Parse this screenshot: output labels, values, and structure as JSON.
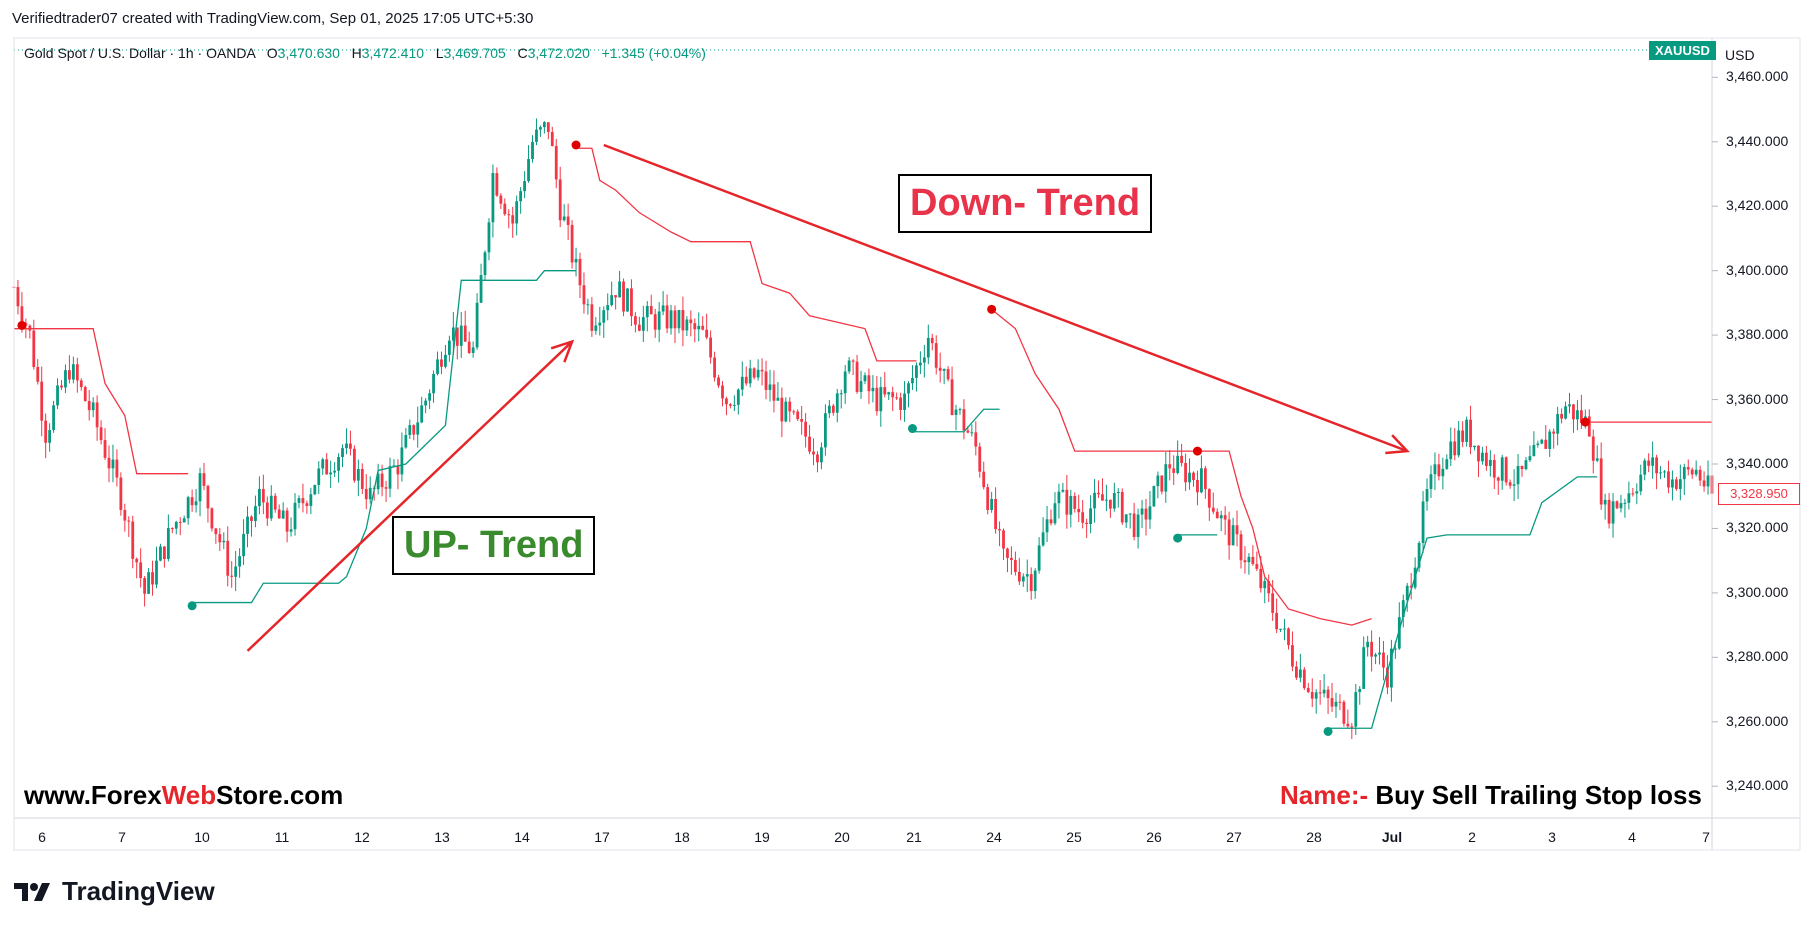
{
  "header": {
    "text": "Verifiedtrader07 created with TradingView.com, Sep 01, 2025 17:05 UTC+5:30"
  },
  "legend": {
    "symbol": "Gold Spot / U.S. Dollar · 1h · OANDA",
    "o_label": "O",
    "o_value": "3,470.630",
    "h_label": "H",
    "h_value": "3,472.410",
    "l_label": "L",
    "l_value": "3,469.705",
    "c_label": "C",
    "c_value": "3,472.020",
    "change": "+1.345 (+0.04%)"
  },
  "symbol_badge": "XAUUSD",
  "currency": "USD",
  "last_price": "3,328.950",
  "annotations": {
    "up_trend": "UP- Trend",
    "down_trend": "Down- Trend"
  },
  "watermark": {
    "site_a": "www.Forex",
    "site_b": "Web",
    "site_c": "Store.com",
    "name_label": "Name:-",
    "name_value": " Buy Sell Trailing Stop loss"
  },
  "logo": {
    "text": "TradingView",
    "icon": "tradingview-logo-icon"
  },
  "colors": {
    "up": "#089981",
    "down": "#f23645",
    "arrow": "#e5252a",
    "up_text": "#3a8a2e"
  },
  "chart_data": {
    "type": "candlestick",
    "title": "",
    "ylim": [
      3232,
      3466
    ],
    "y_ticks": [
      "3,460.000",
      "3,440.000",
      "3,420.000",
      "3,400.000",
      "3,380.000",
      "3,360.000",
      "3,340.000",
      "3,320.000",
      "3,300.000",
      "3,280.000",
      "3,260.000",
      "3,240.000"
    ],
    "y_tick_values": [
      3460,
      3440,
      3420,
      3400,
      3380,
      3360,
      3340,
      3320,
      3300,
      3280,
      3260,
      3240
    ],
    "x_ticks": [
      "6",
      "7",
      "10",
      "11",
      "12",
      "13",
      "14",
      "17",
      "18",
      "19",
      "20",
      "21",
      "24",
      "25",
      "26",
      "27",
      "28",
      "Jul",
      "2",
      "3",
      "4",
      "7"
    ],
    "series": [
      {
        "name": "price_path",
        "points": [
          [
            0,
            3395
          ],
          [
            4,
            3380
          ],
          [
            8,
            3350
          ],
          [
            14,
            3370
          ],
          [
            20,
            3355
          ],
          [
            27,
            3330
          ],
          [
            33,
            3300
          ],
          [
            40,
            3320
          ],
          [
            47,
            3335
          ],
          [
            55,
            3305
          ],
          [
            62,
            3330
          ],
          [
            69,
            3320
          ],
          [
            76,
            3335
          ],
          [
            83,
            3345
          ],
          [
            90,
            3330
          ],
          [
            97,
            3340
          ],
          [
            104,
            3360
          ],
          [
            110,
            3382
          ],
          [
            116,
            3375
          ],
          [
            121,
            3430
          ],
          [
            126,
            3415
          ],
          [
            131,
            3440
          ],
          [
            135,
            3445
          ],
          [
            138,
            3420
          ],
          [
            142,
            3400
          ],
          [
            146,
            3385
          ],
          [
            152,
            3395
          ],
          [
            158,
            3385
          ],
          [
            166,
            3385
          ],
          [
            174,
            3380
          ],
          [
            180,
            3360
          ],
          [
            188,
            3368
          ],
          [
            195,
            3355
          ],
          [
            203,
            3345
          ],
          [
            210,
            3370
          ],
          [
            218,
            3360
          ],
          [
            225,
            3360
          ],
          [
            231,
            3380
          ],
          [
            236,
            3362
          ],
          [
            243,
            3345
          ],
          [
            250,
            3310
          ],
          [
            257,
            3305
          ],
          [
            263,
            3330
          ],
          [
            270,
            3325
          ],
          [
            277,
            3330
          ],
          [
            284,
            3320
          ],
          [
            292,
            3340
          ],
          [
            300,
            3335
          ],
          [
            306,
            3320
          ],
          [
            312,
            3310
          ],
          [
            318,
            3295
          ],
          [
            323,
            3280
          ],
          [
            328,
            3270
          ],
          [
            333,
            3265
          ],
          [
            338,
            3262
          ],
          [
            342,
            3285
          ],
          [
            347,
            3275
          ],
          [
            352,
            3300
          ],
          [
            357,
            3330
          ],
          [
            362,
            3345
          ],
          [
            367,
            3350
          ],
          [
            373,
            3340
          ],
          [
            380,
            3335
          ],
          [
            386,
            3345
          ],
          [
            392,
            3358
          ],
          [
            398,
            3352
          ],
          [
            402,
            3325
          ],
          [
            407,
            3330
          ],
          [
            413,
            3340
          ],
          [
            419,
            3335
          ],
          [
            425,
            3338
          ],
          [
            429,
            3330
          ]
        ]
      },
      {
        "name": "trail_sell_1",
        "points": [
          [
            0,
            3382
          ],
          [
            20,
            3382
          ],
          [
            23,
            3365
          ],
          [
            28,
            3355
          ],
          [
            31,
            3337
          ],
          [
            44,
            3337
          ]
        ]
      },
      {
        "name": "trail_buy_1",
        "points": [
          [
            45,
            3297
          ],
          [
            60,
            3297
          ],
          [
            63,
            3303
          ],
          [
            82,
            3303
          ],
          [
            84,
            3305
          ],
          [
            89,
            3320
          ],
          [
            92,
            3338
          ],
          [
            99,
            3340
          ],
          [
            109,
            3352
          ],
          [
            113,
            3397
          ],
          [
            132,
            3397
          ],
          [
            134,
            3400
          ],
          [
            142,
            3400
          ]
        ]
      },
      {
        "name": "trail_sell_2",
        "points": [
          [
            142,
            3438
          ],
          [
            146,
            3438
          ],
          [
            148,
            3428
          ],
          [
            152,
            3425
          ],
          [
            158,
            3418
          ],
          [
            166,
            3412
          ],
          [
            171,
            3409
          ],
          [
            186,
            3409
          ],
          [
            189,
            3396
          ],
          [
            196,
            3393
          ],
          [
            201,
            3386
          ],
          [
            215,
            3382
          ],
          [
            218,
            3372
          ],
          [
            228,
            3372
          ]
        ]
      },
      {
        "name": "trail_buy_2",
        "points": [
          [
            227,
            3350
          ],
          [
            240,
            3350
          ],
          [
            245,
            3357
          ],
          [
            249,
            3357
          ]
        ]
      },
      {
        "name": "trail_sell_3",
        "points": [
          [
            247,
            3388
          ],
          [
            253,
            3382
          ],
          [
            258,
            3368
          ],
          [
            264,
            3357
          ],
          [
            268,
            3344
          ],
          [
            299,
            3344
          ]
        ]
      },
      {
        "name": "trail_buy_3",
        "points": [
          [
            294,
            3318
          ],
          [
            304,
            3318
          ]
        ]
      },
      {
        "name": "trail_sell_4",
        "points": [
          [
            299,
            3344
          ],
          [
            307,
            3344
          ],
          [
            310,
            3330
          ],
          [
            313,
            3320
          ],
          [
            316,
            3305
          ],
          [
            322,
            3295
          ],
          [
            330,
            3292
          ],
          [
            338,
            3290
          ],
          [
            343,
            3292
          ]
        ]
      },
      {
        "name": "trail_buy_4",
        "points": [
          [
            332,
            3258
          ],
          [
            343,
            3258
          ],
          [
            348,
            3280
          ],
          [
            352,
            3297
          ],
          [
            357,
            3317
          ],
          [
            362,
            3318
          ],
          [
            383,
            3318
          ],
          [
            386,
            3328
          ],
          [
            395,
            3336
          ],
          [
            400,
            3336
          ]
        ]
      },
      {
        "name": "trail_sell_5",
        "points": [
          [
            397,
            3353
          ],
          [
            429,
            3353
          ]
        ]
      }
    ],
    "signals": [
      {
        "type": "sell",
        "x": 2,
        "y": 3383
      },
      {
        "type": "buy",
        "x": 45,
        "y": 3296
      },
      {
        "type": "sell",
        "x": 142,
        "y": 3439
      },
      {
        "type": "buy",
        "x": 227,
        "y": 3351
      },
      {
        "type": "sell",
        "x": 247,
        "y": 3388
      },
      {
        "type": "buy",
        "x": 294,
        "y": 3317
      },
      {
        "type": "sell",
        "x": 299,
        "y": 3344
      },
      {
        "type": "buy",
        "x": 332,
        "y": 3257
      },
      {
        "type": "sell",
        "x": 397,
        "y": 3353
      }
    ],
    "trend_arrows": [
      {
        "name": "up-trend",
        "from": [
          59,
          3282
        ],
        "to": [
          141,
          3378
        ]
      },
      {
        "name": "down-trend",
        "from": [
          149,
          3439
        ],
        "to": [
          352,
          3344
        ]
      }
    ],
    "x_range": [
      0,
      429
    ]
  }
}
